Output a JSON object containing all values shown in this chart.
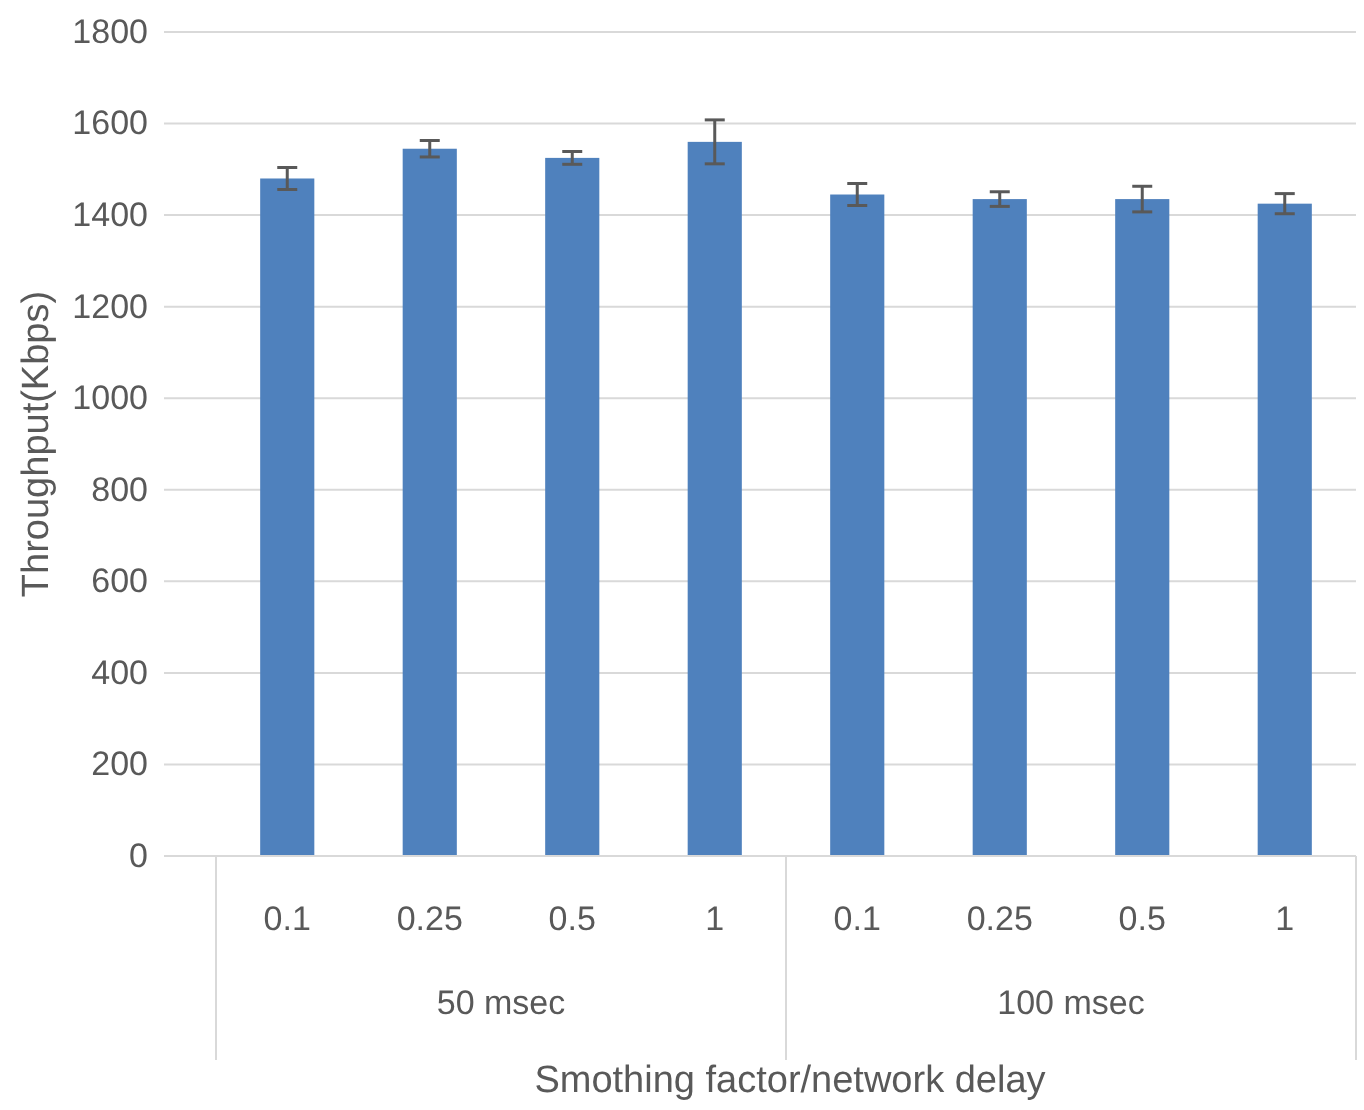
{
  "chart_data": {
    "type": "bar",
    "xlabel": "Smothing factor/network delay",
    "ylabel": "Throughput(Kbps)",
    "categories": [
      "0.1",
      "0.25",
      "0.5",
      "1",
      "0.1",
      "0.25",
      "0.5",
      "1"
    ],
    "values": [
      1480,
      1545,
      1525,
      1560,
      1445,
      1435,
      1435,
      1425
    ],
    "errors": [
      24,
      18,
      14,
      48,
      24,
      16,
      28,
      22
    ],
    "color": "#4f81bd",
    "ylim": [
      0,
      1800
    ],
    "yticks": [
      0,
      200,
      400,
      600,
      800,
      1000,
      1200,
      1400,
      1600,
      1800
    ],
    "grid": "y",
    "annotations": [
      "50 msec",
      "100 msec"
    ]
  }
}
